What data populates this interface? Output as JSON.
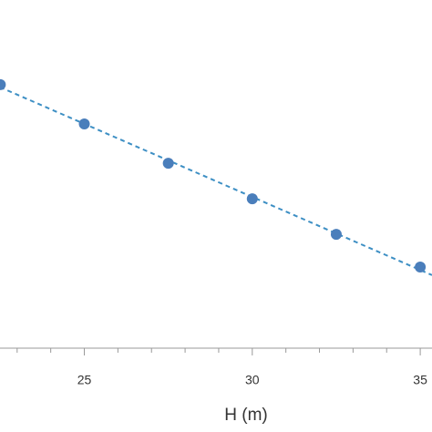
{
  "chart_data": {
    "type": "scatter",
    "x_label": "H (m)",
    "x": [
      22.5,
      25,
      27.5,
      30,
      32.5,
      35
    ],
    "values": [
      75.7,
      64.4,
      53.1,
      42.9,
      32.7,
      23.3
    ],
    "color": "#4a7ebb",
    "trendline": true,
    "trendline_color": "#3d8fc4",
    "xlim": [
      22.49,
      35.35
    ],
    "xticks": [
      25,
      30,
      35
    ],
    "xminorticks": [
      23,
      24,
      26,
      27,
      28,
      29,
      31,
      32,
      33,
      34
    ],
    "ylim": [
      0,
      100
    ]
  }
}
